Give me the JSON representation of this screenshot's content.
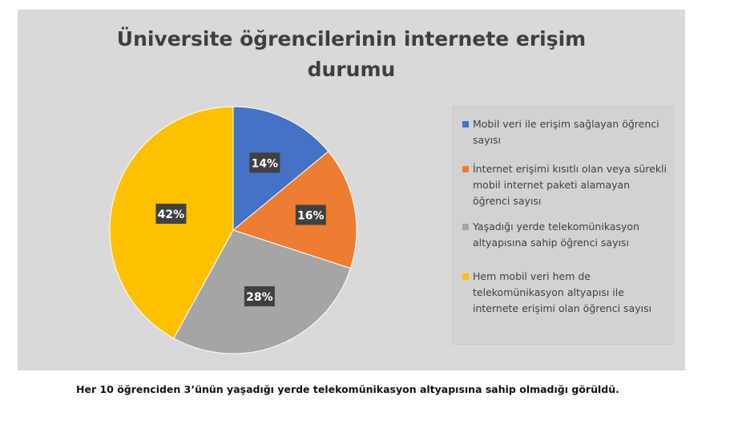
{
  "chart_data": {
    "type": "pie",
    "title_lines": [
      "Üniversite öğrencilerinin internete erişim",
      "durumu"
    ],
    "slices": [
      {
        "label": "Mobil veri ile erişim sağlayan öğrenci sayısı",
        "value": 14,
        "display": "14%",
        "color": "#4472c4"
      },
      {
        "label": "İnternet erişimi kısıtlı olan veya sürekli mobil internet paketi alamayan öğrenci sayısı",
        "value": 16,
        "display": "16%",
        "color": "#ed7d31"
      },
      {
        "label": "Yaşadığı yerde telekomünikasyon altyapısına sahip öğrenci sayısı",
        "value": 28,
        "display": "28%",
        "color": "#a5a5a5"
      },
      {
        "label": "Hem mobil veri hem de telekomünikasyon altyapısı ile internete erişimi olan öğrenci sayısı",
        "value": 42,
        "display": "42%",
        "color": "#ffc000"
      }
    ],
    "legend_position": "right",
    "data_label_background": "#404040"
  },
  "caption": "Her 10 öğrenciden 3’ünün yaşadığı yerde telekomünikasyon altyapısına sahip olmadığı görüldü."
}
